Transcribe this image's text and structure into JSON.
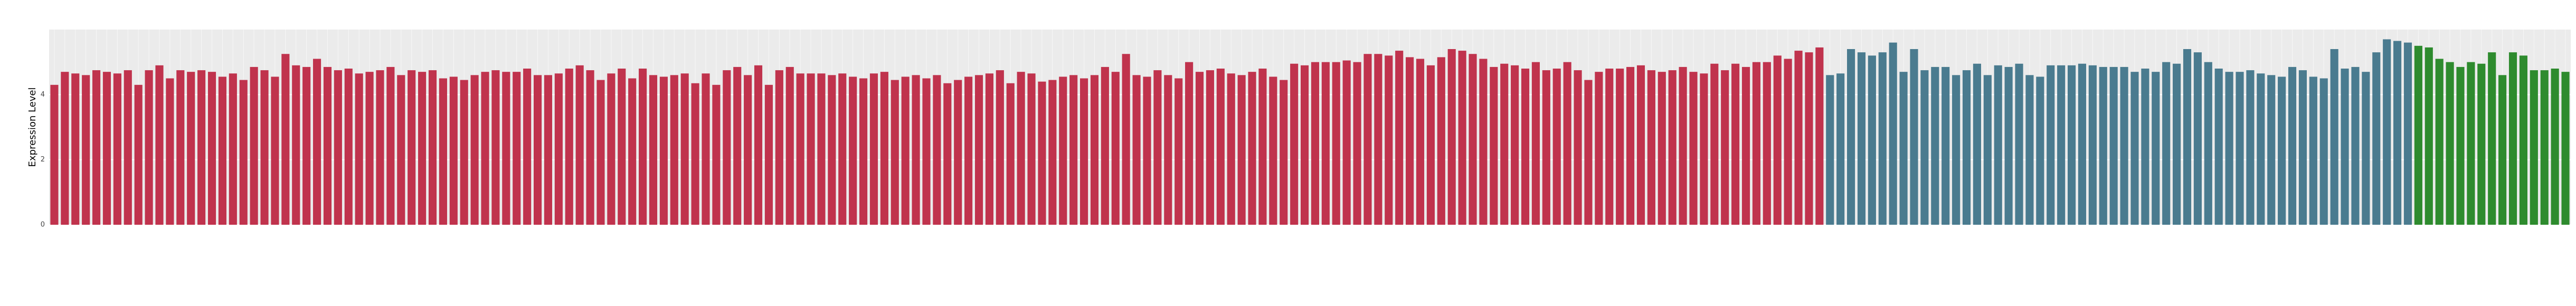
{
  "chart_data": {
    "type": "bar",
    "y_label": "Expression Level",
    "ylim": [
      0,
      6
    ],
    "yticks": [
      0,
      2,
      4
    ],
    "grid": true,
    "categories": [
      null,
      null,
      null,
      null,
      null,
      null,
      null,
      null,
      null,
      null,
      null,
      null,
      null,
      null,
      null,
      null,
      null,
      null,
      null,
      null,
      null,
      null,
      null,
      null,
      null,
      null,
      null,
      null,
      null,
      null,
      null,
      null,
      null,
      null,
      null,
      null,
      null,
      null,
      null,
      null,
      null,
      null,
      null,
      null,
      null,
      null,
      null,
      null,
      null,
      null,
      null,
      null,
      null,
      null,
      null,
      null,
      null,
      null,
      null,
      null,
      null,
      null,
      null,
      null,
      null,
      null,
      null,
      null,
      null,
      null,
      null,
      null,
      null,
      null,
      null,
      null,
      null,
      null,
      null,
      null,
      null,
      null,
      null,
      null,
      null,
      null,
      null,
      null,
      null,
      null,
      null,
      null,
      null,
      null,
      null,
      null,
      null,
      null,
      null,
      null,
      null,
      null,
      null,
      null,
      null,
      null,
      null,
      null,
      null,
      null,
      null,
      null,
      null,
      null,
      null,
      null,
      null,
      null,
      null,
      null,
      null,
      null,
      null,
      null,
      null,
      null,
      null,
      null,
      null,
      null,
      null,
      null,
      null,
      null,
      null,
      null,
      null,
      null,
      null,
      null,
      null,
      null,
      null,
      null,
      null,
      null,
      null,
      null,
      null,
      null,
      null,
      null,
      null,
      null,
      null,
      null,
      null,
      null,
      null,
      null,
      null,
      null,
      null,
      null,
      null,
      null,
      null,
      null,
      null,
      null,
      null,
      null,
      null,
      null,
      null,
      null,
      null,
      null,
      null,
      null,
      null,
      null,
      null,
      null,
      null,
      null,
      null,
      null,
      null,
      null,
      null,
      null,
      null,
      null,
      null,
      null,
      null,
      null,
      null,
      null,
      null,
      null,
      null,
      null,
      null,
      null,
      null,
      null,
      null,
      null,
      null,
      null,
      null,
      null,
      null,
      null,
      null,
      null,
      null,
      null,
      null,
      null,
      null,
      null,
      null,
      null,
      null,
      null,
      null,
      null,
      null,
      null,
      null,
      null,
      null,
      null,
      null,
      null,
      null,
      null
    ],
    "series": [
      {
        "color": "#c0334d",
        "values": [
          4.3,
          4.7,
          4.65,
          4.6,
          4.75,
          4.7,
          4.65,
          4.75,
          4.3,
          4.75,
          4.9,
          4.5,
          4.75,
          4.7,
          4.75,
          4.7,
          4.55,
          4.65,
          4.45,
          4.85,
          4.75,
          4.55,
          5.25,
          4.9,
          4.85,
          5.1,
          4.85,
          4.75,
          4.8,
          4.65,
          4.7,
          4.75,
          4.85,
          4.6,
          4.75,
          4.7,
          4.75,
          4.5,
          4.55,
          4.45,
          4.6,
          4.7,
          4.75,
          4.7,
          4.7,
          4.8,
          4.6,
          4.6,
          4.65,
          4.8,
          4.9,
          4.75,
          4.45,
          4.65,
          4.8,
          4.5,
          4.8,
          4.6,
          4.55,
          4.6,
          4.65,
          4.35,
          4.65,
          4.3,
          4.75,
          4.85,
          4.6,
          4.9,
          4.3,
          4.75,
          4.85,
          4.65,
          4.65,
          4.65,
          4.6,
          4.65,
          4.55,
          4.5,
          4.65,
          4.7,
          4.45,
          4.55,
          4.6,
          4.5,
          4.6,
          4.35,
          4.45,
          4.55,
          4.6,
          4.65,
          4.75,
          4.35,
          4.7,
          4.65,
          4.4,
          4.45,
          4.55,
          4.6,
          4.5,
          4.6,
          4.85,
          4.7,
          5.25,
          4.6,
          4.55,
          4.75,
          4.6,
          4.5,
          5.0,
          4.7,
          4.75,
          4.8,
          4.65,
          4.6,
          4.7,
          4.8,
          4.55,
          4.45,
          4.95,
          4.9,
          5.0,
          5.0,
          5.0,
          5.05,
          5.0,
          5.25,
          5.25,
          5.2,
          5.35,
          5.15,
          5.1,
          4.9,
          5.15,
          5.4,
          5.35,
          5.25,
          5.1,
          4.85,
          4.95,
          4.9,
          4.8,
          5.0,
          4.75,
          4.8,
          5.0,
          4.75,
          4.45,
          4.7,
          4.8,
          4.8,
          4.85,
          4.9,
          4.75,
          4.7,
          4.75,
          4.85,
          4.7,
          4.65,
          4.95,
          4.75,
          4.95,
          4.85,
          5.0,
          5.0,
          5.2,
          5.1,
          5.35,
          5.3,
          5.45,
          null,
          null,
          null,
          null,
          null,
          null,
          null,
          null,
          null,
          null,
          null,
          null,
          null,
          null,
          null,
          null,
          null,
          null,
          null,
          null,
          null,
          null,
          null,
          null,
          null,
          null,
          null,
          null,
          null,
          null,
          null,
          null,
          null,
          null,
          null,
          null,
          null,
          null,
          null,
          null,
          null,
          null,
          null,
          null,
          null,
          null,
          null,
          null,
          null,
          null,
          null,
          null,
          null,
          null,
          null,
          null,
          null,
          null,
          null,
          null,
          null,
          null,
          null,
          null,
          null,
          null,
          null,
          null,
          null,
          null,
          null
        ]
      },
      {
        "color": "#4a7b8f",
        "values": [
          null,
          null,
          null,
          null,
          null,
          null,
          null,
          null,
          null,
          null,
          null,
          null,
          null,
          null,
          null,
          null,
          null,
          null,
          null,
          null,
          null,
          null,
          null,
          null,
          null,
          null,
          null,
          null,
          null,
          null,
          null,
          null,
          null,
          null,
          null,
          null,
          null,
          null,
          null,
          null,
          null,
          null,
          null,
          null,
          null,
          null,
          null,
          null,
          null,
          null,
          null,
          null,
          null,
          null,
          null,
          null,
          null,
          null,
          null,
          null,
          null,
          null,
          null,
          null,
          null,
          null,
          null,
          null,
          null,
          null,
          null,
          null,
          null,
          null,
          null,
          null,
          null,
          null,
          null,
          null,
          null,
          null,
          null,
          null,
          null,
          null,
          null,
          null,
          null,
          null,
          null,
          null,
          null,
          null,
          null,
          null,
          null,
          null,
          null,
          null,
          null,
          null,
          null,
          null,
          null,
          null,
          null,
          null,
          null,
          null,
          null,
          null,
          null,
          null,
          null,
          null,
          null,
          null,
          null,
          null,
          null,
          null,
          null,
          null,
          null,
          null,
          null,
          null,
          null,
          null,
          null,
          null,
          null,
          null,
          null,
          null,
          null,
          null,
          null,
          null,
          null,
          null,
          null,
          null,
          null,
          null,
          null,
          null,
          null,
          null,
          null,
          null,
          null,
          null,
          null,
          null,
          null,
          null,
          null,
          null,
          null,
          null,
          null,
          null,
          null,
          null,
          null,
          null,
          null,
          4.6,
          4.65,
          5.4,
          5.3,
          5.2,
          5.3,
          5.6,
          4.7,
          5.4,
          4.75,
          4.85,
          4.85,
          4.6,
          4.75,
          4.95,
          4.6,
          4.9,
          4.85,
          4.95,
          4.6,
          4.55,
          4.9,
          4.9,
          4.9,
          4.95,
          4.9,
          4.85,
          4.85,
          4.85,
          4.7,
          4.8,
          4.7,
          5.0,
          4.95,
          5.4,
          5.3,
          5.0,
          4.8,
          4.7,
          4.7,
          4.75,
          4.65,
          4.6,
          4.55,
          4.85,
          4.75,
          4.55,
          4.5,
          5.4,
          4.8,
          4.85,
          4.7,
          5.3,
          5.7,
          5.65,
          5.6,
          null,
          null,
          null,
          null,
          null,
          null,
          null,
          null,
          null,
          null,
          null,
          null,
          null,
          null,
          null
        ]
      },
      {
        "color": "#2e8b2e",
        "values": [
          null,
          null,
          null,
          null,
          null,
          null,
          null,
          null,
          null,
          null,
          null,
          null,
          null,
          null,
          null,
          null,
          null,
          null,
          null,
          null,
          null,
          null,
          null,
          null,
          null,
          null,
          null,
          null,
          null,
          null,
          null,
          null,
          null,
          null,
          null,
          null,
          null,
          null,
          null,
          null,
          null,
          null,
          null,
          null,
          null,
          null,
          null,
          null,
          null,
          null,
          null,
          null,
          null,
          null,
          null,
          null,
          null,
          null,
          null,
          null,
          null,
          null,
          null,
          null,
          null,
          null,
          null,
          null,
          null,
          null,
          null,
          null,
          null,
          null,
          null,
          null,
          null,
          null,
          null,
          null,
          null,
          null,
          null,
          null,
          null,
          null,
          null,
          null,
          null,
          null,
          null,
          null,
          null,
          null,
          null,
          null,
          null,
          null,
          null,
          null,
          null,
          null,
          null,
          null,
          null,
          null,
          null,
          null,
          null,
          null,
          null,
          null,
          null,
          null,
          null,
          null,
          null,
          null,
          null,
          null,
          null,
          null,
          null,
          null,
          null,
          null,
          null,
          null,
          null,
          null,
          null,
          null,
          null,
          null,
          null,
          null,
          null,
          null,
          null,
          null,
          null,
          null,
          null,
          null,
          null,
          null,
          null,
          null,
          null,
          null,
          null,
          null,
          null,
          null,
          null,
          null,
          null,
          null,
          null,
          null,
          null,
          null,
          null,
          null,
          null,
          null,
          null,
          null,
          null,
          null,
          null,
          null,
          null,
          null,
          null,
          null,
          null,
          null,
          null,
          null,
          null,
          null,
          null,
          null,
          null,
          null,
          null,
          null,
          null,
          null,
          null,
          null,
          null,
          null,
          null,
          null,
          null,
          null,
          null,
          null,
          null,
          null,
          null,
          null,
          null,
          null,
          null,
          null,
          null,
          null,
          null,
          null,
          null,
          null,
          null,
          null,
          null,
          null,
          null,
          null,
          null,
          null,
          null,
          null,
          null,
          5.5,
          5.45,
          5.1,
          5.0,
          4.85,
          5.0,
          4.95,
          5.3,
          4.6,
          5.3,
          5.2,
          4.75,
          4.75,
          4.8,
          4.7
        ]
      }
    ]
  }
}
